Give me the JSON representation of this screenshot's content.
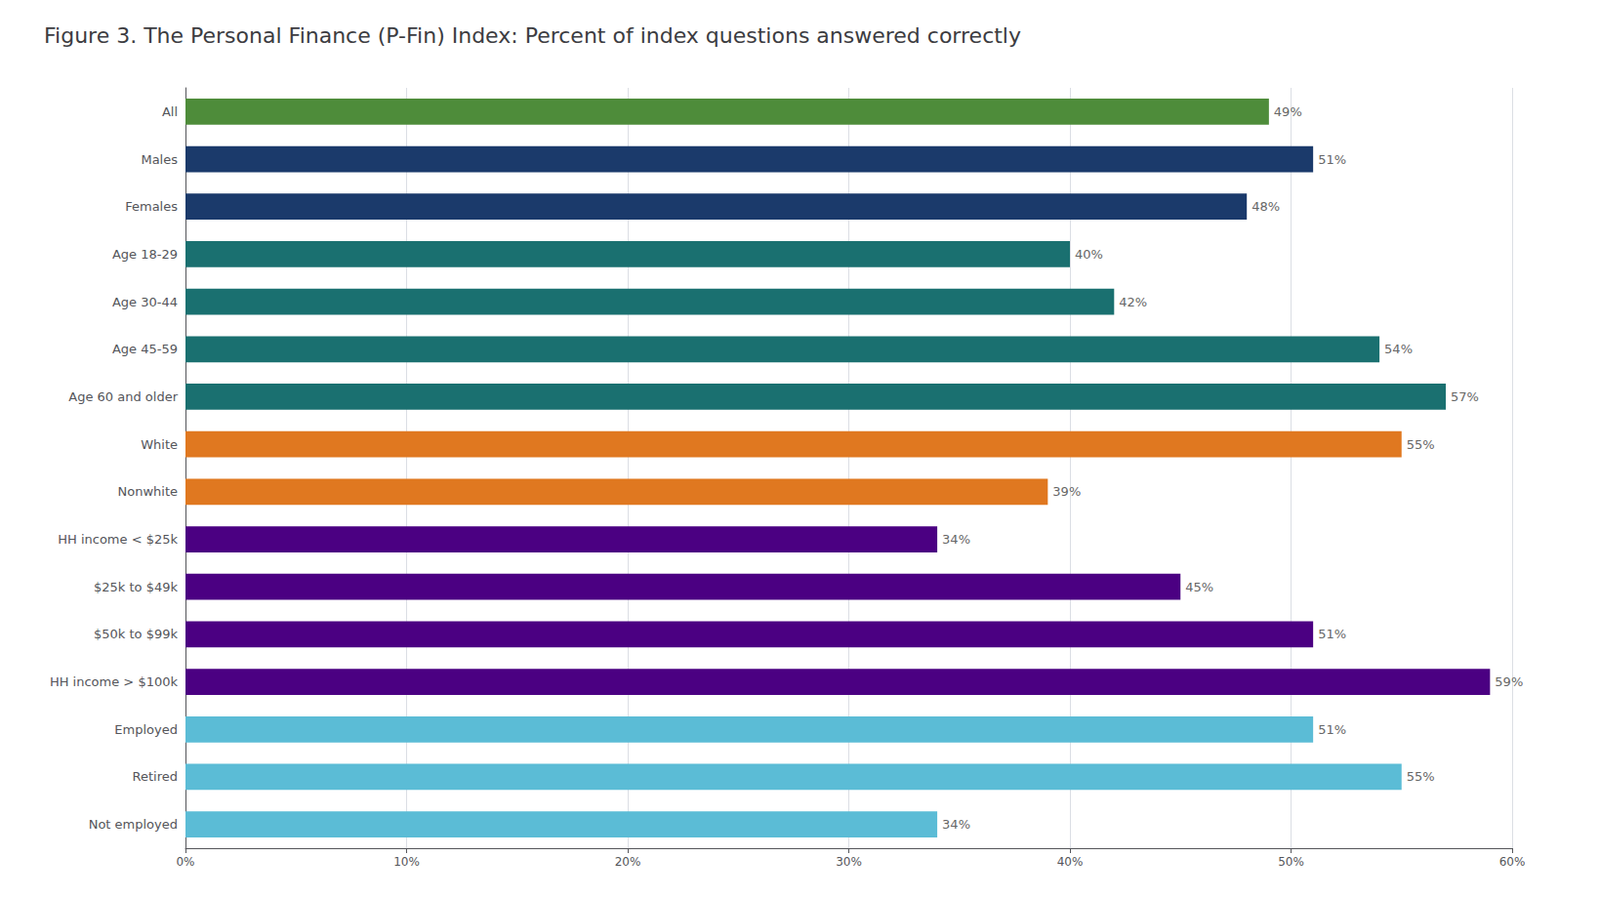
{
  "chart_data": {
    "type": "bar",
    "orientation": "horizontal",
    "title": "Figure 3. The Personal Finance (P-Fin) Index: Percent of index questions answered correctly",
    "categories": [
      "All",
      "Males",
      "Females",
      "Age 18-29",
      "Age 30-44",
      "Age 45-59",
      "Age 60 and older",
      "White",
      "Nonwhite",
      "HH income < $25k",
      "$25k to $49k",
      "$50k to $99k",
      "HH income > $100k",
      "Employed",
      "Retired",
      "Not employed"
    ],
    "values": [
      49,
      51,
      48,
      40,
      42,
      54,
      57,
      55,
      39,
      34,
      45,
      51,
      59,
      51,
      55,
      34
    ],
    "value_labels": [
      "49%",
      "51%",
      "48%",
      "40%",
      "42%",
      "54%",
      "57%",
      "55%",
      "39%",
      "34%",
      "45%",
      "51%",
      "59%",
      "51%",
      "55%",
      "34%"
    ],
    "data_labels": true,
    "colors": [
      "#4e8c3a",
      "#1b3a6b",
      "#1b3a6b",
      "#1a7070",
      "#1a7070",
      "#1a7070",
      "#1a7070",
      "#e07820",
      "#e07820",
      "#4b0082",
      "#4b0082",
      "#4b0082",
      "#4b0082",
      "#5bbcd6",
      "#5bbcd6",
      "#5bbcd6"
    ],
    "xlim": [
      0,
      60
    ],
    "xticks": [
      {
        "value": 0,
        "label": "0%"
      },
      {
        "value": 10,
        "label": "10%"
      },
      {
        "value": 20,
        "label": "20%"
      },
      {
        "value": 30,
        "label": "30%"
      },
      {
        "value": 40,
        "label": "40%"
      },
      {
        "value": 50,
        "label": "50%"
      },
      {
        "value": 60,
        "label": "60%"
      }
    ],
    "grid": true
  }
}
